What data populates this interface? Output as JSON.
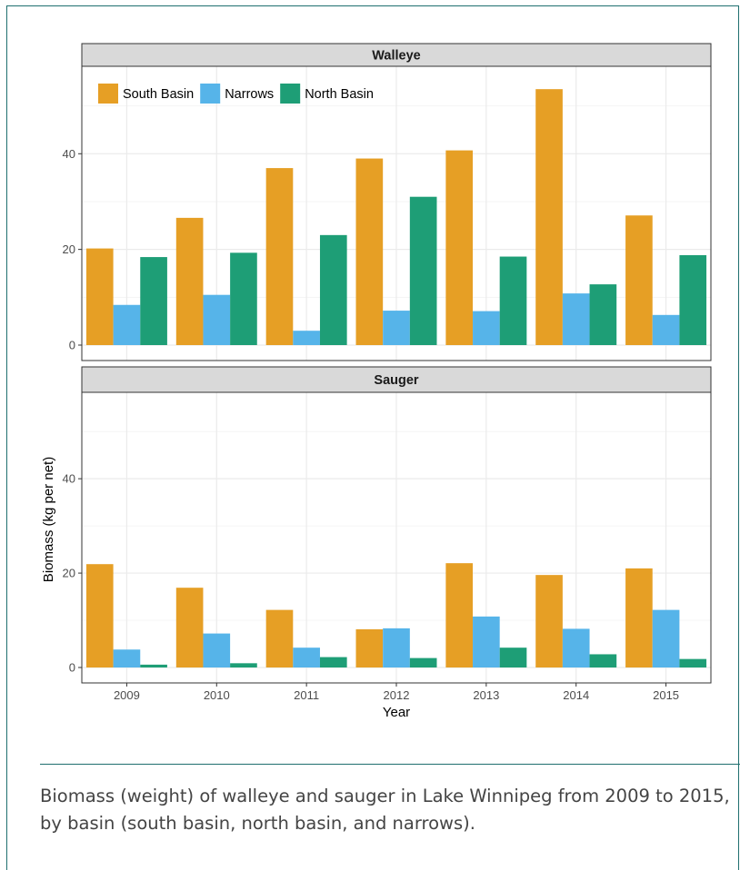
{
  "caption": "Biomass (weight) of walleye and sauger in Lake Winnipeg from 2009 to 2015, by basin (south basin, north basin, and narrows).",
  "chart_data": {
    "type": "bar",
    "xlabel": "Year",
    "ylabel": "Biomass (kg per net)",
    "categories": [
      "2009",
      "2010",
      "2011",
      "2012",
      "2013",
      "2014",
      "2015"
    ],
    "ylim": [
      0,
      56
    ],
    "yticks": [
      0,
      20,
      40
    ],
    "grid": true,
    "legend": {
      "placement": "top-left",
      "panel": "Walleye"
    },
    "series_colors": {
      "South Basin": "#E69F25",
      "Narrows": "#56B4E9",
      "North Basin": "#1E9E76"
    },
    "panels": [
      {
        "title": "Walleye",
        "series": [
          {
            "name": "South Basin",
            "values": [
              20.2,
              26.6,
              37.0,
              39.0,
              40.7,
              53.5,
              27.1
            ]
          },
          {
            "name": "Narrows",
            "values": [
              8.4,
              10.5,
              3.0,
              7.2,
              7.1,
              10.8,
              6.3
            ]
          },
          {
            "name": "North Basin",
            "values": [
              18.4,
              19.3,
              23.0,
              31.0,
              18.5,
              12.7,
              18.8
            ]
          }
        ]
      },
      {
        "title": "Sauger",
        "series": [
          {
            "name": "South Basin",
            "values": [
              21.9,
              16.9,
              12.2,
              8.1,
              22.1,
              19.6,
              21.0
            ]
          },
          {
            "name": "Narrows",
            "values": [
              3.8,
              7.2,
              4.2,
              8.3,
              10.8,
              8.2,
              12.2
            ]
          },
          {
            "name": "North Basin",
            "values": [
              0.6,
              0.9,
              2.2,
              2.0,
              4.2,
              2.8,
              1.8
            ]
          }
        ]
      }
    ]
  }
}
